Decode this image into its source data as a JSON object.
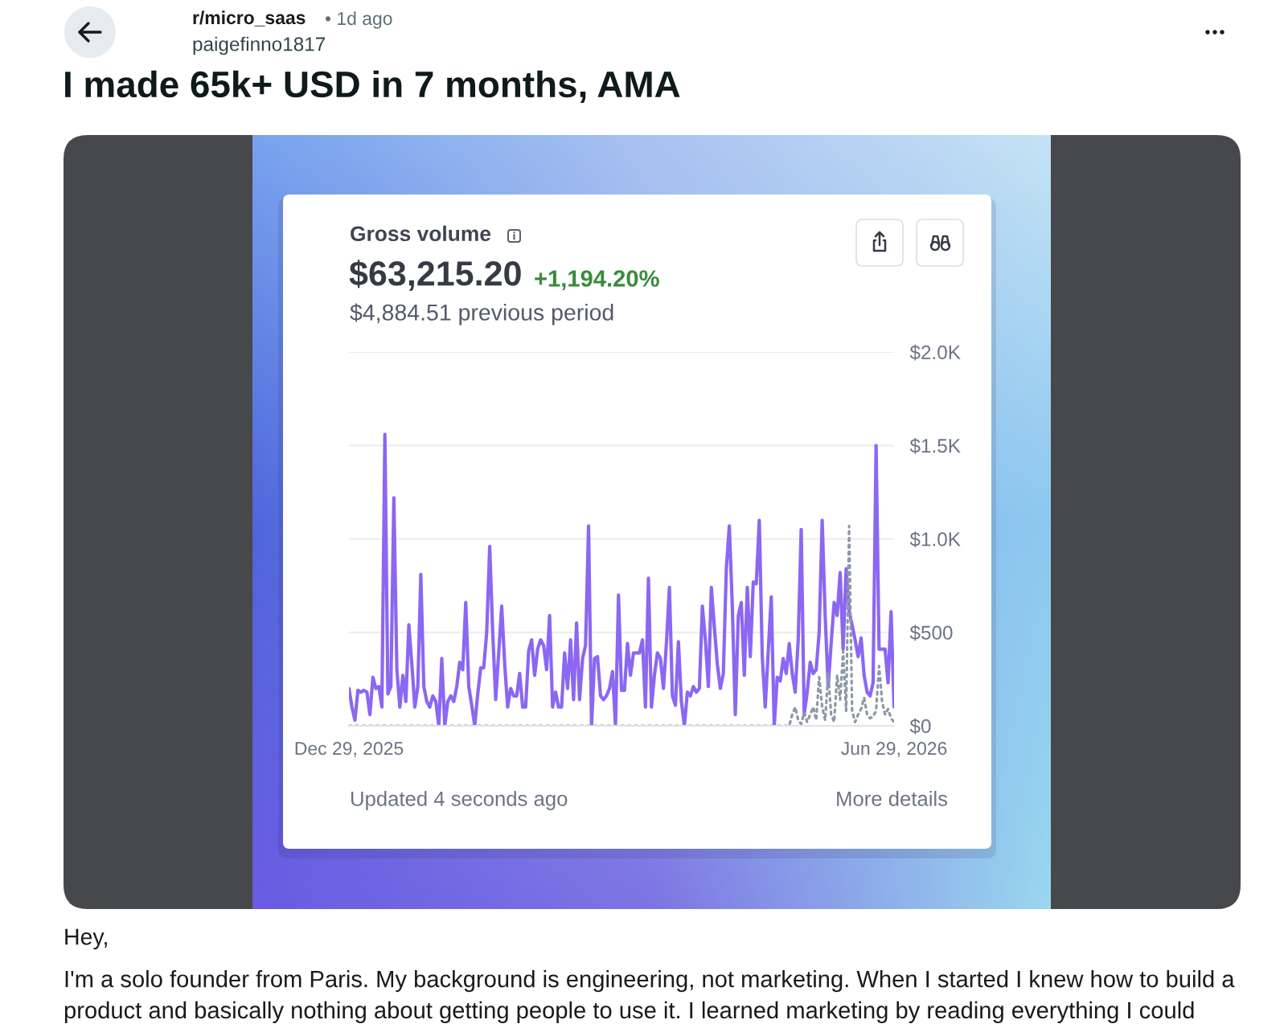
{
  "chart_data": {
    "type": "line",
    "title": "Gross volume",
    "annotations": [
      "r/micro_saas",
      "• 1d ago",
      "paigefinno1817",
      "I made 65k+ USD in 7 months, AMA",
      "$63,215.20",
      "+1,194.20%",
      "$4,884.51 previous period",
      "Updated 4 seconds ago",
      "More details",
      "Hey,",
      "I'm a solo founder from Paris. My background is engineering, not marketing. When I started I knew how to build a product and basically nothing about getting people to use it. I learned marketing by reading everything I could"
    ],
    "x": [
      "2025-12-29",
      "2025-12-30",
      "2025-12-31",
      "2026-01-01",
      "2026-01-02",
      "2026-01-03",
      "2026-01-04",
      "2026-01-05",
      "2026-01-06",
      "2026-01-07",
      "2026-01-08",
      "2026-01-09",
      "2026-01-10",
      "2026-01-11",
      "2026-01-12",
      "2026-01-13",
      "2026-01-14",
      "2026-01-15",
      "2026-01-16",
      "2026-01-17",
      "2026-01-18",
      "2026-01-19",
      "2026-01-20",
      "2026-01-21",
      "2026-01-22",
      "2026-01-23",
      "2026-01-24",
      "2026-01-25",
      "2026-01-26",
      "2026-01-27",
      "2026-01-28",
      "2026-01-29",
      "2026-01-30",
      "2026-01-31",
      "2026-02-01",
      "2026-02-02",
      "2026-02-03",
      "2026-02-04",
      "2026-02-05",
      "2026-02-06",
      "2026-02-07",
      "2026-02-08",
      "2026-02-09",
      "2026-02-10",
      "2026-02-11",
      "2026-02-12",
      "2026-02-13",
      "2026-02-14",
      "2026-02-15",
      "2026-02-16",
      "2026-02-17",
      "2026-02-18",
      "2026-02-19",
      "2026-02-20",
      "2026-02-21",
      "2026-02-22",
      "2026-02-23",
      "2026-02-24",
      "2026-02-25",
      "2026-02-26",
      "2026-02-27",
      "2026-02-28",
      "2026-03-01",
      "2026-03-02",
      "2026-03-03",
      "2026-03-04",
      "2026-03-05",
      "2026-03-06",
      "2026-03-07",
      "2026-03-08",
      "2026-03-09",
      "2026-03-10",
      "2026-03-11",
      "2026-03-12",
      "2026-03-13",
      "2026-03-14",
      "2026-03-15",
      "2026-03-16",
      "2026-03-17",
      "2026-03-18",
      "2026-03-19",
      "2026-03-20",
      "2026-03-21",
      "2026-03-22",
      "2026-03-23",
      "2026-03-24",
      "2026-03-25",
      "2026-03-26",
      "2026-03-27",
      "2026-03-28",
      "2026-03-29",
      "2026-03-30",
      "2026-03-31",
      "2026-04-01",
      "2026-04-02",
      "2026-04-03",
      "2026-04-04",
      "2026-04-05",
      "2026-04-06",
      "2026-04-07",
      "2026-04-08",
      "2026-04-09",
      "2026-04-10",
      "2026-04-11",
      "2026-04-12",
      "2026-04-13",
      "2026-04-14",
      "2026-04-15",
      "2026-04-16",
      "2026-04-17",
      "2026-04-18",
      "2026-04-19",
      "2026-04-20",
      "2026-04-21",
      "2026-04-22",
      "2026-04-23",
      "2026-04-24",
      "2026-04-25",
      "2026-04-26",
      "2026-04-27",
      "2026-04-28",
      "2026-04-29",
      "2026-04-30",
      "2026-05-01",
      "2026-05-02",
      "2026-05-03",
      "2026-05-04",
      "2026-05-05",
      "2026-05-06",
      "2026-05-07",
      "2026-05-08",
      "2026-05-09",
      "2026-05-10",
      "2026-05-11",
      "2026-05-12",
      "2026-05-13",
      "2026-05-14",
      "2026-05-15",
      "2026-05-16",
      "2026-05-17",
      "2026-05-18",
      "2026-05-19",
      "2026-05-20",
      "2026-05-21",
      "2026-05-22",
      "2026-05-23",
      "2026-05-24",
      "2026-05-25",
      "2026-05-26",
      "2026-05-27",
      "2026-05-28",
      "2026-05-29",
      "2026-05-30",
      "2026-05-31",
      "2026-06-01",
      "2026-06-02",
      "2026-06-03",
      "2026-06-04",
      "2026-06-05",
      "2026-06-06",
      "2026-06-07",
      "2026-06-08",
      "2026-06-09",
      "2026-06-10",
      "2026-06-11",
      "2026-06-12",
      "2026-06-13",
      "2026-06-14",
      "2026-06-15",
      "2026-06-16",
      "2026-06-17",
      "2026-06-18",
      "2026-06-19",
      "2026-06-20",
      "2026-06-21",
      "2026-06-22",
      "2026-06-23",
      "2026-06-24",
      "2026-06-25",
      "2026-06-26",
      "2026-06-27",
      "2026-06-28",
      "2026-06-29"
    ],
    "xlim": [
      "2025-12-29",
      "2026-06-29"
    ],
    "xticks": [
      {
        "value": "2025-12-29",
        "label": "Dec 29, 2025"
      },
      {
        "value": "2026-06-29",
        "label": "Jun 29, 2026"
      }
    ],
    "ylim": [
      0,
      2000
    ],
    "yticks": [
      {
        "value": 0,
        "label": "$0"
      },
      {
        "value": 500,
        "label": "$500"
      },
      {
        "value": 1000,
        "label": "$1.0K"
      },
      {
        "value": 1500,
        "label": "$1.5K"
      },
      {
        "value": 2000,
        "label": "$2.0K"
      }
    ],
    "grid": "y",
    "series": [
      {
        "color": "#8b67f2",
        "values": [
          200,
          100,
          30,
          190,
          180,
          190,
          180,
          60,
          260,
          200,
          210,
          100,
          1560,
          170,
          210,
          1220,
          300,
          100,
          270,
          130,
          540,
          330,
          100,
          210,
          810,
          210,
          130,
          100,
          160,
          130,
          0,
          360,
          0,
          130,
          160,
          130,
          210,
          340,
          300,
          660,
          210,
          110,
          0,
          170,
          310,
          310,
          500,
          960,
          500,
          140,
          390,
          640,
          330,
          100,
          200,
          160,
          160,
          280,
          100,
          100,
          400,
          460,
          270,
          410,
          460,
          430,
          300,
          590,
          100,
          180,
          100,
          100,
          390,
          200,
          460,
          140,
          550,
          140,
          360,
          430,
          1070,
          0,
          360,
          370,
          160,
          140,
          160,
          200,
          290,
          0,
          700,
          190,
          190,
          440,
          270,
          390,
          390,
          390,
          460,
          100,
          790,
          100,
          270,
          390,
          360,
          200,
          440,
          740,
          160,
          110,
          450,
          130,
          0,
          180,
          160,
          210,
          180,
          200,
          640,
          460,
          210,
          740,
          530,
          330,
          200,
          280,
          840,
          1070,
          640,
          60,
          590,
          660,
          270,
          740,
          370,
          770,
          760,
          1100,
          370,
          100,
          400,
          690,
          0,
          260,
          240,
          360,
          280,
          440,
          280,
          180,
          460,
          1050,
          60,
          180,
          340,
          280,
          300,
          500,
          1100,
          590,
          210,
          440,
          660,
          590,
          820,
          410,
          840,
          610,
          540,
          460,
          370,
          470,
          270,
          180,
          160,
          230,
          1500,
          410,
          410,
          410,
          230,
          610,
          100
        ]
      },
      {
        "color": "#8e98a6",
        "line_style": "dotted",
        "values": [
          0,
          0,
          0,
          0,
          0,
          0,
          0,
          0,
          0,
          0,
          0,
          0,
          0,
          0,
          0,
          0,
          0,
          0,
          0,
          0,
          0,
          0,
          0,
          0,
          0,
          0,
          0,
          0,
          0,
          0,
          0,
          0,
          0,
          0,
          0,
          0,
          0,
          0,
          0,
          0,
          0,
          0,
          0,
          0,
          0,
          0,
          0,
          0,
          0,
          0,
          0,
          0,
          0,
          0,
          0,
          0,
          0,
          0,
          0,
          0,
          0,
          0,
          0,
          0,
          0,
          0,
          0,
          0,
          0,
          0,
          0,
          0,
          0,
          0,
          0,
          0,
          0,
          0,
          0,
          0,
          0,
          0,
          0,
          0,
          0,
          0,
          0,
          0,
          0,
          0,
          0,
          0,
          0,
          0,
          0,
          0,
          0,
          0,
          0,
          0,
          0,
          0,
          0,
          0,
          0,
          0,
          0,
          0,
          0,
          0,
          0,
          0,
          0,
          0,
          0,
          0,
          0,
          0,
          0,
          0,
          0,
          0,
          0,
          0,
          0,
          0,
          0,
          0,
          0,
          0,
          0,
          0,
          0,
          0,
          0,
          0,
          0,
          0,
          0,
          0,
          0,
          0,
          0,
          0,
          0,
          0,
          0,
          0,
          60,
          100,
          30,
          10,
          70,
          20,
          60,
          100,
          30,
          260,
          100,
          30,
          280,
          60,
          20,
          270,
          140,
          400,
          80,
          1070,
          80,
          20,
          60,
          90,
          150,
          60,
          40,
          50,
          80,
          320,
          130,
          60,
          90,
          40,
          20
        ]
      }
    ]
  }
}
